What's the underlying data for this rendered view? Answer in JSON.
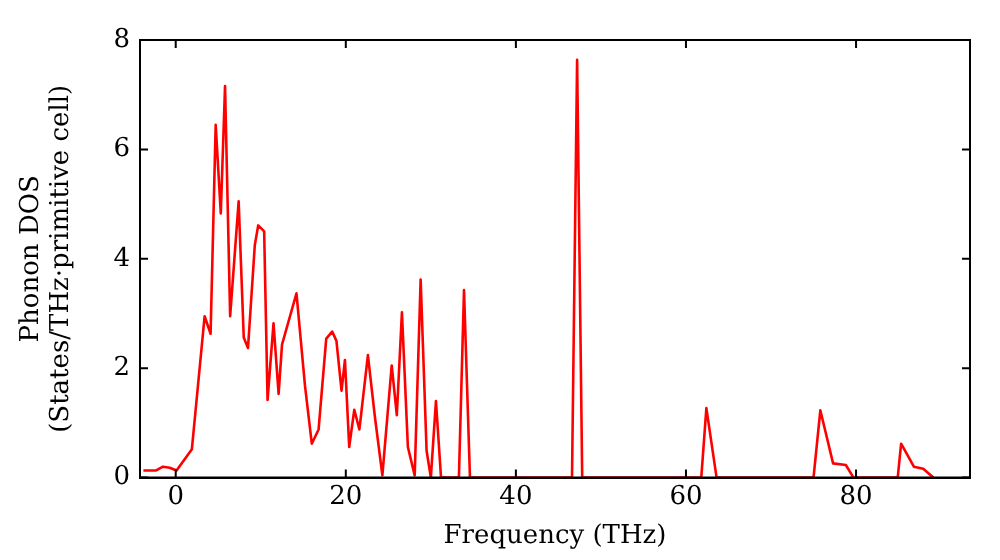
{
  "chart_data": {
    "type": "line",
    "xlabel": "Frequency (THz)",
    "ylabel": "Phonon DOS\n(States/THz·primitive cell)",
    "x": [
      -3.8,
      -2.3,
      -1.5,
      -0.7,
      0.1,
      1.9,
      3.4,
      4.1,
      4.7,
      5.3,
      5.8,
      6.4,
      7.4,
      8.0,
      8.5,
      9.3,
      9.7,
      10.4,
      10.8,
      11.5,
      12.1,
      12.5,
      14.2,
      15.2,
      16.0,
      16.8,
      17.7,
      18.4,
      18.9,
      19.5,
      19.9,
      20.4,
      21.0,
      21.6,
      22.6,
      23.4,
      24.3,
      25.4,
      26.0,
      26.6,
      27.3,
      28.1,
      28.8,
      29.5,
      30.0,
      30.6,
      31.2,
      33.3,
      33.9,
      34.6,
      46.6,
      47.2,
      47.8,
      61.8,
      62.4,
      63.6,
      75.0,
      75.8,
      77.3,
      78.8,
      79.7,
      84.9,
      85.3,
      86.8,
      87.9,
      89.1
    ],
    "series": [
      {
        "color": "#ff0000",
        "values": [
          0.13,
          0.13,
          0.2,
          0.18,
          0.13,
          0.52,
          2.95,
          2.63,
          6.45,
          4.83,
          7.16,
          2.95,
          5.05,
          2.56,
          2.37,
          4.25,
          4.61,
          4.5,
          1.42,
          2.82,
          1.53,
          2.43,
          3.37,
          1.68,
          0.62,
          0.88,
          2.54,
          2.67,
          2.5,
          1.59,
          2.15,
          0.56,
          1.24,
          0.88,
          2.24,
          1.14,
          0.04,
          2.05,
          1.14,
          3.02,
          0.56,
          0.04,
          3.62,
          0.49,
          0,
          1.4,
          0,
          0,
          3.43,
          0,
          0,
          7.64,
          0,
          0,
          1.27,
          0,
          0,
          1.23,
          0.26,
          0.23,
          0,
          0,
          0.62,
          0.2,
          0.16,
          0
        ]
      }
    ],
    "xlim": [
      -4.2,
      93.4
    ],
    "xticks": [
      0,
      20,
      40,
      60,
      80
    ],
    "ylim": [
      0,
      8
    ],
    "yticks": [
      0,
      2,
      4,
      6,
      8
    ],
    "grid": false,
    "legend": false,
    "marker": "none",
    "line_style": "solid"
  }
}
